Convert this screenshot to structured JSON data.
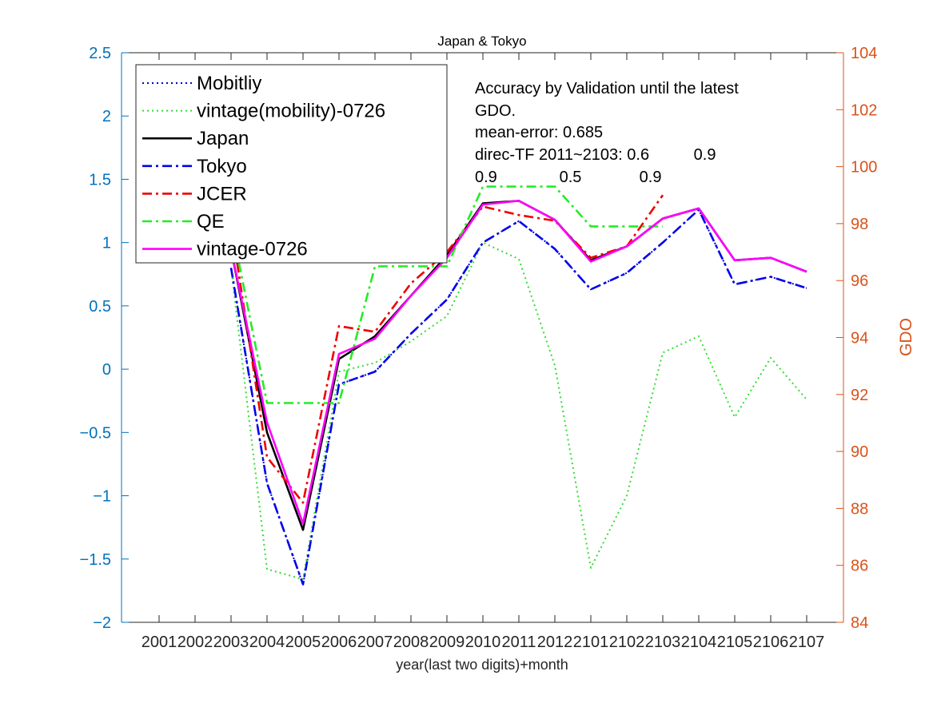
{
  "chart_data": {
    "type": "line",
    "title": "Japan & Tokyo",
    "xlabel": "year(last two digits)+month",
    "ylabel": "",
    "ylabel_right": "GDO",
    "categories": [
      "2001",
      "2002",
      "2003",
      "2004",
      "2005",
      "2006",
      "2007",
      "2008",
      "2009",
      "2010",
      "2011",
      "2012",
      "2101",
      "2102",
      "2103",
      "2104",
      "2105",
      "2106",
      "2107"
    ],
    "ylim": [
      -2,
      2.5
    ],
    "yticks": [
      -2,
      -1.5,
      -1,
      -0.5,
      0,
      0.5,
      1,
      1.5,
      2,
      2.5
    ],
    "ytick_labels": [
      "−2",
      "−1.5",
      "−1",
      "−0.5",
      "0",
      "0.5",
      "1",
      "1.5",
      "2",
      "2.5"
    ],
    "ylim_right": [
      84,
      104
    ],
    "yticks_right": [
      84,
      86,
      88,
      90,
      92,
      94,
      96,
      98,
      100,
      102,
      104
    ],
    "grid": false,
    "legend_position": "top-left",
    "series": [
      {
        "name": "Mobitliy",
        "color": "#0000cc",
        "style": "dotted",
        "axis": "left",
        "values": [
          null,
          null,
          0.8,
          -0.9,
          -1.7,
          -0.12,
          -0.02,
          0.28,
          0.55,
          1.0,
          1.17,
          0.95,
          0.63,
          0.76,
          1.0,
          1.26,
          0.67,
          0.73,
          0.64
        ]
      },
      {
        "name": "vintage(mobility)-0726",
        "color": "#33dd33",
        "style": "dotted",
        "axis": "left",
        "values": [
          null,
          null,
          0.8,
          -1.58,
          -1.66,
          -0.02,
          0.05,
          0.22,
          0.42,
          1.0,
          0.87,
          0.03,
          -1.57,
          -1.0,
          0.13,
          0.26,
          -0.38,
          0.09,
          -0.24
        ]
      },
      {
        "name": "Japan",
        "color": "#000000",
        "style": "solid",
        "axis": "left",
        "values": [
          null,
          null,
          0.95,
          -0.5,
          -1.27,
          0.08,
          0.26,
          0.58,
          0.9,
          1.31,
          1.33,
          1.18,
          0.86,
          0.97,
          1.19,
          1.27,
          0.86,
          0.88,
          0.77
        ]
      },
      {
        "name": "Tokyo",
        "color": "#0000ee",
        "style": "dashdot",
        "axis": "left",
        "values": [
          null,
          null,
          0.8,
          -0.9,
          -1.7,
          -0.12,
          -0.02,
          0.28,
          0.55,
          1.0,
          1.17,
          0.95,
          0.63,
          0.76,
          1.0,
          1.26,
          0.67,
          0.73,
          0.64
        ]
      },
      {
        "name": "JCER",
        "color": "#ee0000",
        "style": "dashdot",
        "axis": "right",
        "values": [
          null,
          null,
          98.0,
          89.8,
          88.2,
          94.4,
          94.2,
          95.9,
          97.0,
          98.6,
          98.3,
          98.1,
          96.8,
          97.2,
          99.0,
          null,
          null,
          null,
          null
        ]
      },
      {
        "name": "QE",
        "color": "#22ee22",
        "style": "dashdot",
        "axis": "right",
        "step": true,
        "values": [
          null,
          null,
          98.0,
          91.7,
          91.7,
          91.7,
          96.5,
          96.5,
          96.5,
          99.3,
          99.3,
          99.3,
          97.9,
          97.9,
          97.9,
          null,
          null,
          null,
          null
        ]
      },
      {
        "name": "vintage-0726",
        "color": "#ff00ff",
        "style": "solid",
        "axis": "left",
        "values": [
          null,
          null,
          0.95,
          -0.42,
          -1.22,
          0.12,
          0.24,
          0.58,
          0.88,
          1.3,
          1.33,
          1.18,
          0.85,
          0.97,
          1.19,
          1.27,
          0.86,
          0.88,
          0.77
        ]
      }
    ],
    "annotation": {
      "lines": [
        "Accuracy by Validation until the latest",
        "GDO.",
        "mean-error: 0.685",
        "direc-TF 2011~2103: 0.6          0.9",
        "0.9              0.5             0.9"
      ]
    },
    "colors": {
      "left_axis": "#0072bd",
      "right_axis": "#d95319",
      "axis_black": "#262626"
    }
  }
}
